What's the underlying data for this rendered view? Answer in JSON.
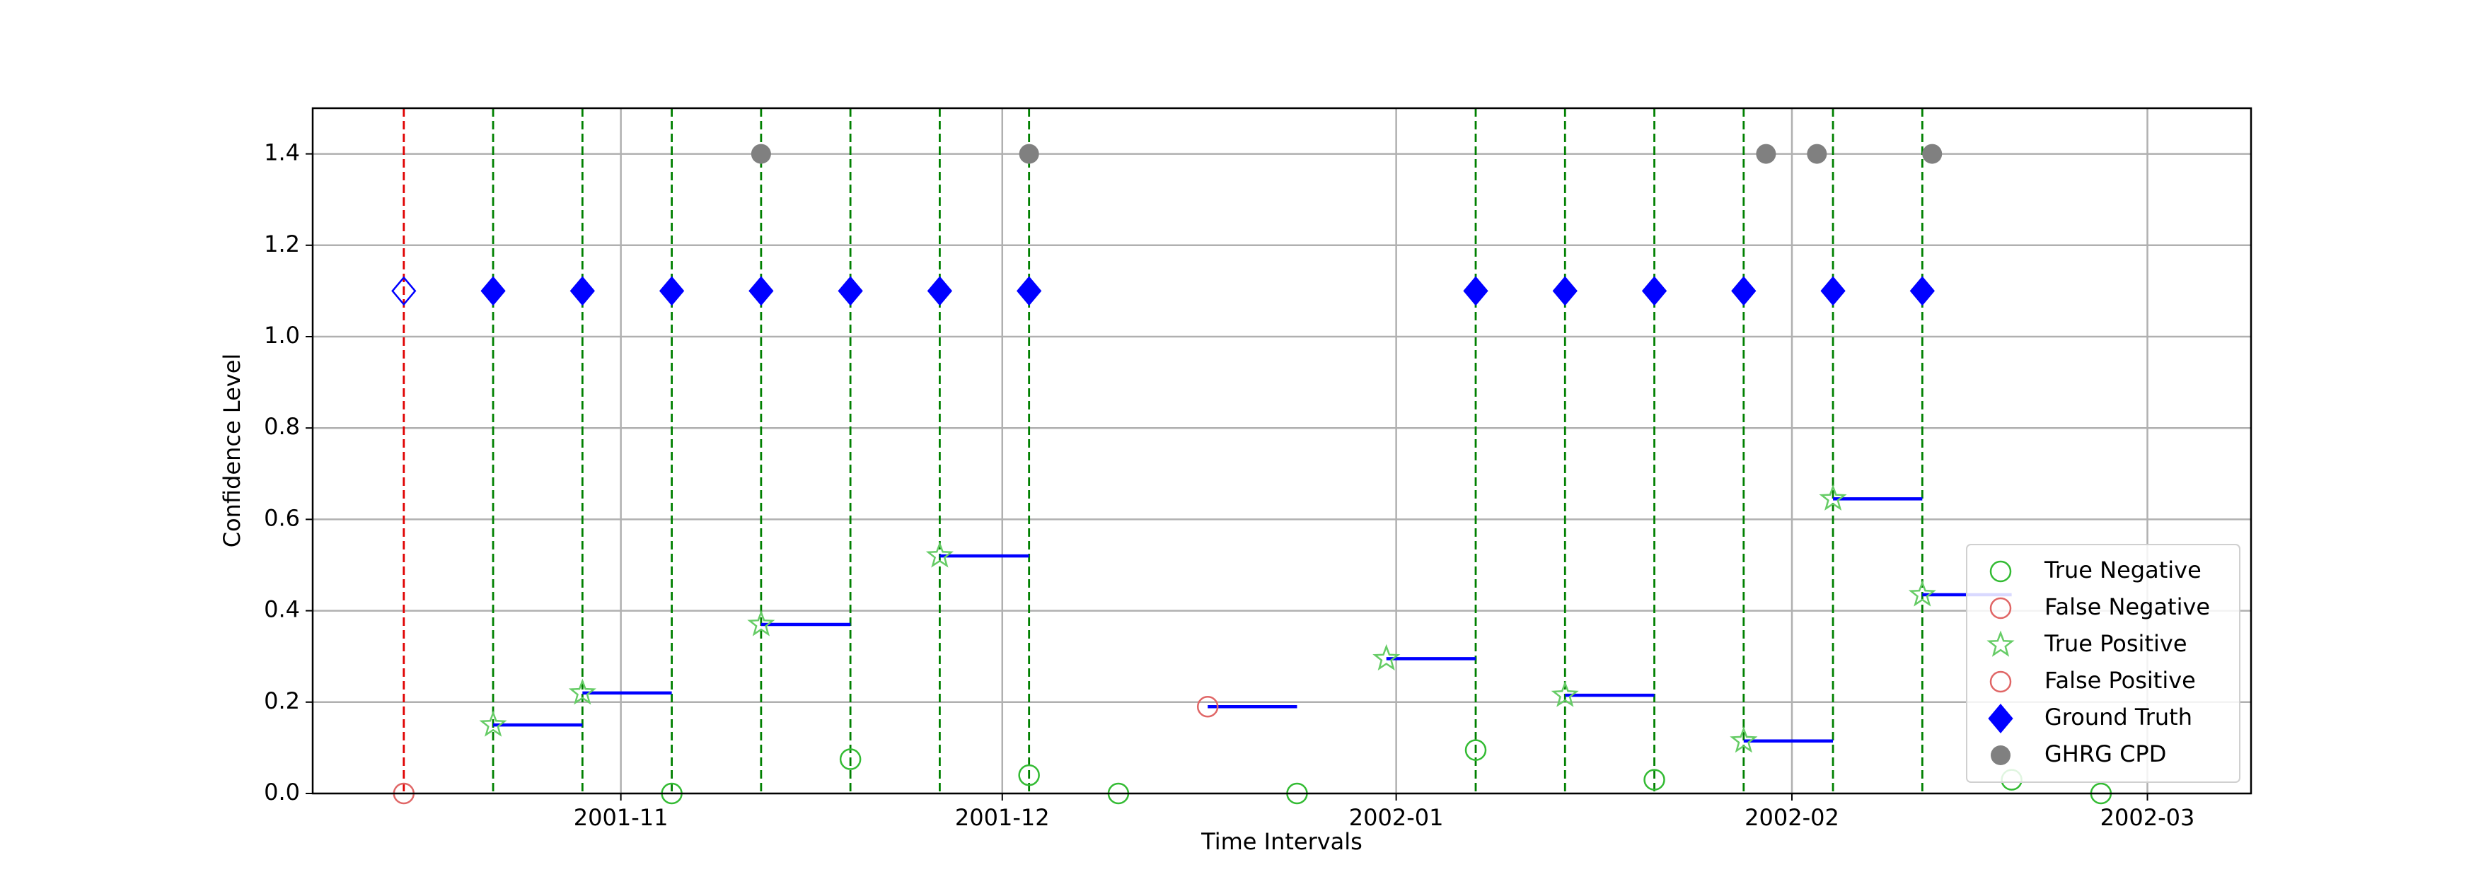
{
  "chart_data": {
    "type": "event-scatter",
    "x_label": "Time Intervals",
    "y_label": "Confidence Level",
    "xlim": [
      -1.02,
      20.68
    ],
    "xticks": [
      {
        "value": 2.43,
        "label": "2001-11"
      },
      {
        "value": 6.7,
        "label": "2001-12"
      },
      {
        "value": 11.11,
        "label": "2002-01"
      },
      {
        "value": 15.54,
        "label": "2002-02"
      },
      {
        "value": 19.52,
        "label": "2002-03"
      }
    ],
    "ylim": [
      0,
      1.5
    ],
    "yticks": [
      {
        "value": 0,
        "label": "0.0"
      },
      {
        "value": 0.2,
        "label": "0.2"
      },
      {
        "value": 0.4,
        "label": "0.4"
      },
      {
        "value": 0.6,
        "label": "0.6"
      },
      {
        "value": 0.8,
        "label": "0.8"
      },
      {
        "value": 1,
        "label": "1.0"
      },
      {
        "value": 1.2,
        "label": "1.2"
      },
      {
        "value": 1.4,
        "label": "1.4"
      }
    ],
    "grid": true,
    "legend": "lower right",
    "segment_length": 1,
    "segment_color": "#0000ff",
    "series": [
      {
        "name": "True Negative",
        "marker": "circle",
        "filled": false,
        "color": "#33bb33",
        "x": [
          3,
          5,
          7,
          8,
          10,
          12,
          14,
          18,
          19
        ],
        "values": [
          0,
          0.075,
          0.04,
          0,
          0,
          0.095,
          0.03,
          0.03,
          0
        ]
      },
      {
        "name": "False Negative",
        "marker": "circle",
        "filled": false,
        "color": "#e06666",
        "x": [
          0
        ],
        "values": [
          0
        ]
      },
      {
        "name": "True Positive",
        "marker": "star",
        "filled": false,
        "color": "#66cc66",
        "segments": true,
        "x": [
          1,
          2,
          4,
          6,
          11,
          13,
          15,
          16,
          17
        ],
        "values": [
          0.15,
          0.22,
          0.37,
          0.52,
          0.295,
          0.215,
          0.115,
          0.645,
          0.435
        ]
      },
      {
        "name": "False Positive",
        "marker": "circle",
        "filled": false,
        "color": "#e06666",
        "segments": true,
        "x": [
          9
        ],
        "values": [
          0.19
        ]
      },
      {
        "name": "Ground Truth",
        "marker": "diamond",
        "filled": true,
        "color": "#0000ff",
        "vlines": true,
        "x": [
          0,
          1,
          2,
          3,
          4,
          5,
          6,
          7,
          12,
          13,
          14,
          15,
          16,
          17
        ],
        "values": [
          1.1,
          1.1,
          1.1,
          1.1,
          1.1,
          1.1,
          1.1,
          1.1,
          1.1,
          1.1,
          1.1,
          1.1,
          1.1,
          1.1
        ],
        "point_fill": [
          false,
          true,
          true,
          true,
          true,
          true,
          true,
          true,
          true,
          true,
          true,
          true,
          true,
          true
        ]
      },
      {
        "name": "GHRG CPD",
        "marker": "dot",
        "filled": true,
        "color": "#808080",
        "x": [
          4,
          7,
          15.25,
          15.82,
          17.11
        ],
        "values": [
          1.4,
          1.4,
          1.4,
          1.4,
          1.4
        ]
      }
    ]
  }
}
